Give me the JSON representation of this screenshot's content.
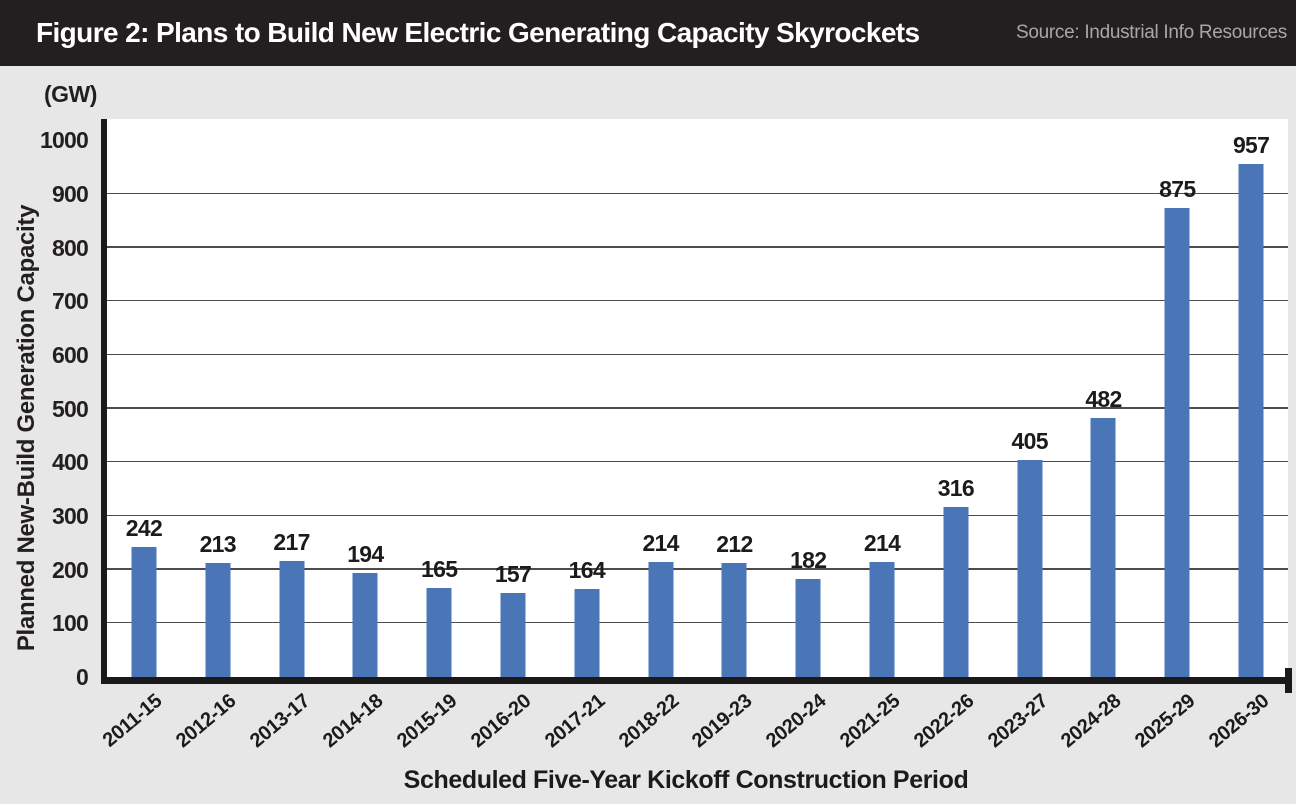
{
  "header": {
    "title": "Figure 2: Plans to Build New Electric Generating Capacity Skyrockets",
    "source": "Source: Industrial Info Resources"
  },
  "chart_data": {
    "type": "bar",
    "title": "Figure 2: Plans to Build New Electric Generating Capacity Skyrockets",
    "unit_label": "(GW)",
    "ylabel": "Planned New-Build Generation Capacity",
    "xlabel": "Scheduled Five-Year Kickoff Construction Period",
    "categories": [
      "2011-15",
      "2012-16",
      "2013-17",
      "2014-18",
      "2015-19",
      "2016-20",
      "2017-21",
      "2018-22",
      "2019-23",
      "2020-24",
      "2021-25",
      "2022-26",
      "2023-27",
      "2024-28",
      "2025-29",
      "2026-30"
    ],
    "values": [
      242,
      213,
      217,
      194,
      165,
      157,
      164,
      214,
      212,
      182,
      214,
      316,
      405,
      482,
      875,
      957
    ],
    "yticks": [
      0,
      100,
      200,
      300,
      400,
      500,
      600,
      700,
      800,
      900,
      1000
    ],
    "grid_ticks": [
      100,
      200,
      300,
      400,
      500,
      600,
      700,
      800,
      900
    ],
    "ylim": [
      0,
      1040
    ],
    "grid": "horizontal-major-only",
    "legend": "none",
    "bar_color": "#4a76b8",
    "background_color": "#e8e7e7",
    "header_color": "#231f20"
  }
}
